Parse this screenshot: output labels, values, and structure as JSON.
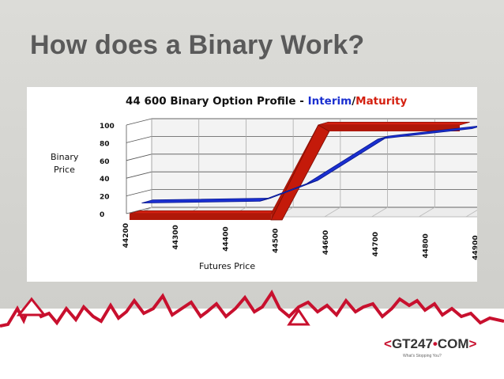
{
  "slide": {
    "title": "How does a Binary Work?"
  },
  "chart_data": {
    "type": "line",
    "title_parts": {
      "prefix": "44 600 Binary Option Profile - ",
      "interim": "Interim",
      "separator": "/",
      "maturity": "Maturity"
    },
    "xlabel": "Futures Price",
    "ylabel": "Binary Price",
    "ylabel_lines": [
      "Binary",
      "Price"
    ],
    "x": [
      44200,
      44300,
      44400,
      44500,
      44600,
      44700,
      44800,
      44900
    ],
    "x_tick_labels": [
      "44200",
      "44300",
      "44400",
      "44500",
      "44600",
      "44700",
      "44800",
      "44900"
    ],
    "y_ticks": [
      0,
      20,
      40,
      60,
      80,
      100
    ],
    "ylim": [
      0,
      100
    ],
    "grid": true,
    "series": [
      {
        "name": "Interim",
        "color": "#1a2fd0",
        "points": [
          [
            44200,
            8
          ],
          [
            44450,
            10
          ],
          [
            44550,
            30
          ],
          [
            44700,
            80
          ],
          [
            44900,
            92
          ]
        ]
      },
      {
        "name": "Maturity",
        "color": "#d42010",
        "points": [
          [
            44200,
            0
          ],
          [
            44500,
            0
          ],
          [
            44600,
            100
          ],
          [
            44900,
            100
          ]
        ]
      }
    ]
  },
  "logo": {
    "lt": "<",
    "name_a": "GT247",
    "dot": "•",
    "name_b": "COM",
    "gt": ">",
    "tagline": "What's Stopping You?"
  }
}
